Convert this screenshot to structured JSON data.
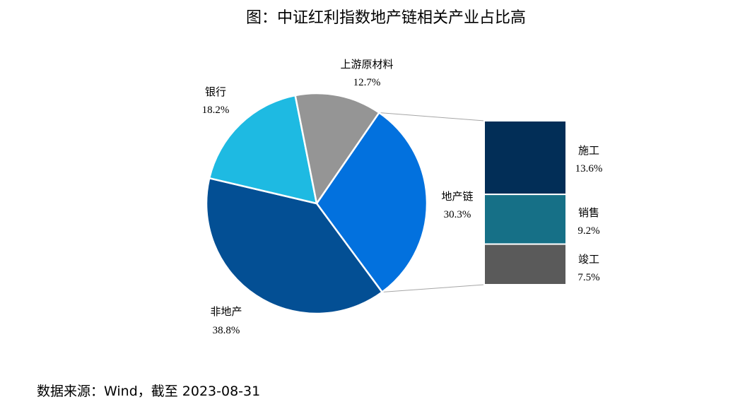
{
  "chart_data": {
    "type": "pie",
    "subtype": "pie-of-bar",
    "title": "图：中证红利指数地产链相关产业占比高",
    "slices": [
      {
        "label": "地产链",
        "value": "30.3%",
        "pct": 30.3,
        "color": "#0271de"
      },
      {
        "label": "非地产",
        "value": "38.8%",
        "pct": 38.8,
        "color": "#034f94"
      },
      {
        "label": "银行",
        "value": "18.2%",
        "pct": 18.2,
        "color": "#1ebae2"
      },
      {
        "label": "上游原材料",
        "value": "12.7%",
        "pct": 12.7,
        "color": "#959595"
      }
    ],
    "breakdown_of": "地产链",
    "bar_segments": [
      {
        "label": "施工",
        "value": "13.6%",
        "pct": 13.6,
        "color": "#022e57"
      },
      {
        "label": "销售",
        "value": "9.2%",
        "pct": 9.2,
        "color": "#167087"
      },
      {
        "label": "竣工",
        "value": "7.5%",
        "pct": 7.5,
        "color": "#5a5a5a"
      }
    ]
  },
  "source": "数据来源：Wind，截至 2023-08-31"
}
